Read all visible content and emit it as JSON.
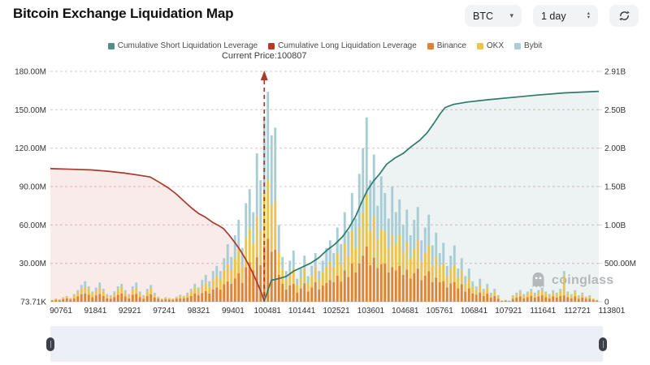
{
  "header": {
    "title": "Bitcoin Exchange Liquidation Map",
    "symbol": "BTC",
    "interval": "1 day"
  },
  "legend": {
    "items": [
      {
        "label": "Cumulative Short Liquidation Leverage",
        "color": "#4f9184"
      },
      {
        "label": "Cumulative Long Liquidation Leverage",
        "color": "#b5392c"
      },
      {
        "label": "Binance",
        "color": "#df8430"
      },
      {
        "label": "OKX",
        "color": "#ecc34b"
      },
      {
        "label": "Bybit",
        "color": "#a8cdd5"
      }
    ]
  },
  "annotation": {
    "current_price_label": "Current Price:100807",
    "line_color": "#a93a2e"
  },
  "watermark": {
    "text": "coinglass"
  },
  "chart_data": {
    "type": "combo (stacked bar + cumulative area lines)",
    "current_price": 100807,
    "current_price_x_frac": 0.39,
    "legend_position": "top",
    "x_axis": {
      "tick_labels": [
        "90761",
        "91841",
        "92921",
        "97241",
        "98321",
        "99401",
        "100481",
        "101441",
        "102521",
        "103601",
        "104681",
        "105761",
        "106841",
        "107921",
        "111641",
        "112721",
        "113801"
      ]
    },
    "left_axis": {
      "unit": "M",
      "range": [
        0,
        180
      ],
      "tick_labels": [
        "180.00M",
        "150.00M",
        "120.00M",
        "90.00M",
        "60.00M",
        "30.00M",
        "73.71K"
      ]
    },
    "right_axis": {
      "unit": "B",
      "range": [
        0,
        2.91
      ],
      "tick_labels": [
        "2.91B",
        "2.50B",
        "2.00B",
        "1.50B",
        "1.00B",
        "500.00M",
        "0"
      ]
    },
    "series": [
      {
        "id": "long",
        "name": "Cumulative Long Liquidation Leverage",
        "type": "line",
        "axis": "left",
        "color": "#a9392e",
        "fill": "rgba(197,92,81,0.12)",
        "points": [
          [
            0.0,
            104
          ],
          [
            0.04,
            103.5
          ],
          [
            0.075,
            103
          ],
          [
            0.105,
            102
          ],
          [
            0.135,
            100.5
          ],
          [
            0.16,
            99
          ],
          [
            0.182,
            97.5
          ],
          [
            0.2,
            93
          ],
          [
            0.215,
            89
          ],
          [
            0.23,
            84
          ],
          [
            0.245,
            78
          ],
          [
            0.258,
            73
          ],
          [
            0.27,
            69
          ],
          [
            0.283,
            66
          ],
          [
            0.296,
            62
          ],
          [
            0.307,
            59.5
          ],
          [
            0.316,
            57
          ],
          [
            0.326,
            52
          ],
          [
            0.335,
            47
          ],
          [
            0.345,
            41
          ],
          [
            0.355,
            34
          ],
          [
            0.365,
            26
          ],
          [
            0.375,
            17
          ],
          [
            0.384,
            8
          ],
          [
            0.39,
            0.3
          ]
        ]
      },
      {
        "id": "short",
        "name": "Cumulative Short Liquidation Leverage",
        "type": "line",
        "axis": "right",
        "color": "#2f7a6b",
        "fill": "rgba(80,140,125,0.10)",
        "points": [
          [
            0.391,
            0.03
          ],
          [
            0.397,
            0.16
          ],
          [
            0.403,
            0.28
          ],
          [
            0.416,
            0.3
          ],
          [
            0.43,
            0.33
          ],
          [
            0.444,
            0.4
          ],
          [
            0.459,
            0.45
          ],
          [
            0.474,
            0.5
          ],
          [
            0.489,
            0.57
          ],
          [
            0.504,
            0.67
          ],
          [
            0.519,
            0.75
          ],
          [
            0.533,
            0.85
          ],
          [
            0.545,
            0.97
          ],
          [
            0.557,
            1.12
          ],
          [
            0.569,
            1.32
          ],
          [
            0.578,
            1.45
          ],
          [
            0.59,
            1.58
          ],
          [
            0.601,
            1.67
          ],
          [
            0.613,
            1.79
          ],
          [
            0.628,
            1.87
          ],
          [
            0.643,
            1.93
          ],
          [
            0.658,
            2.02
          ],
          [
            0.673,
            2.1
          ],
          [
            0.687,
            2.2
          ],
          [
            0.699,
            2.32
          ],
          [
            0.711,
            2.45
          ],
          [
            0.72,
            2.53
          ],
          [
            0.735,
            2.57
          ],
          [
            0.76,
            2.6
          ],
          [
            0.797,
            2.63
          ],
          [
            0.841,
            2.66
          ],
          [
            0.886,
            2.69
          ],
          [
            0.938,
            2.72
          ],
          [
            1.0,
            2.74
          ]
        ]
      }
    ],
    "bars": {
      "names": [
        "Binance",
        "OKX",
        "Bybit"
      ],
      "colors": [
        "#df8430",
        "#ecc34b",
        "#a8cdd5"
      ],
      "unit": "M",
      "values": [
        [
          0.9,
          0.5,
          0.1
        ],
        [
          1.5,
          0.8,
          0.2
        ],
        [
          1.2,
          0.6,
          0.2
        ],
        [
          2.1,
          1.1,
          0.3
        ],
        [
          2.7,
          1.4,
          0.4
        ],
        [
          1.8,
          0.9,
          0.3
        ],
        [
          2.7,
          2.1,
          1.2
        ],
        [
          4.1,
          3.2,
          1.8
        ],
        [
          5.9,
          4.6,
          2.6
        ],
        [
          6.4,
          5.1,
          4.5
        ],
        [
          5.4,
          4.2,
          2.4
        ],
        [
          3.6,
          2.8,
          1.6
        ],
        [
          5.0,
          3.9,
          2.2
        ],
        [
          6.0,
          4.8,
          4.2
        ],
        [
          4.5,
          3.5,
          2.0
        ],
        [
          2.7,
          2.1,
          1.2
        ],
        [
          2.3,
          1.8,
          1.0
        ],
        [
          3.6,
          2.8,
          1.6
        ],
        [
          5.4,
          4.2,
          2.4
        ],
        [
          6.3,
          4.9,
          2.8
        ],
        [
          4.1,
          3.2,
          1.8
        ],
        [
          2.7,
          2.1,
          1.2
        ],
        [
          5.4,
          4.2,
          2.4
        ],
        [
          6.0,
          4.8,
          4.2
        ],
        [
          3.6,
          2.8,
          1.6
        ],
        [
          2.3,
          1.8,
          1.0
        ],
        [
          4.5,
          3.5,
          2.0
        ],
        [
          5.9,
          4.6,
          2.6
        ],
        [
          3.2,
          2.5,
          1.4
        ],
        [
          2.4,
          1.2,
          0.4
        ],
        [
          1.5,
          0.8,
          0.2
        ],
        [
          2.1,
          1.1,
          0.3
        ],
        [
          1.8,
          0.9,
          0.3
        ],
        [
          1.5,
          0.8,
          0.2
        ],
        [
          2.4,
          1.2,
          0.4
        ],
        [
          2.5,
          1.9,
          1.1
        ],
        [
          2.7,
          1.4,
          0.4
        ],
        [
          3.2,
          2.5,
          1.4
        ],
        [
          4.5,
          3.5,
          2.0
        ],
        [
          6.3,
          4.9,
          2.8
        ],
        [
          5.0,
          3.9,
          2.2
        ],
        [
          6.8,
          5.4,
          4.8
        ],
        [
          8.4,
          6.7,
          5.9
        ],
        [
          6.4,
          5.1,
          4.5
        ],
        [
          9.6,
          7.7,
          6.7
        ],
        [
          11.2,
          9.0,
          7.8
        ],
        [
          9.6,
          7.7,
          6.7
        ],
        [
          13.6,
          10.9,
          9.5
        ],
        [
          15.8,
          13.5,
          15.7
        ],
        [
          14.0,
          11.2,
          9.8
        ],
        [
          18.2,
          15.6,
          18.2
        ],
        [
          22.4,
          19.2,
          22.4
        ],
        [
          14.7,
          12.6,
          14.7
        ],
        [
          27.0,
          23.1,
          26.9
        ],
        [
          30.8,
          26.4,
          30.8
        ],
        [
          24.5,
          21.0,
          24.5
        ],
        [
          34.8,
          32.5,
          48.7
        ],
        [
          28.5,
          26.6,
          39.9
        ],
        [
          43.5,
          40.6,
          60.9
        ],
        [
          49.2,
          45.9,
          68.9
        ],
        [
          39.0,
          36.4,
          54.6
        ],
        [
          40.8,
          38.1,
          57.1
        ],
        [
          21.0,
          18.0,
          21.0
        ],
        [
          14.0,
          11.2,
          9.8
        ],
        [
          9.6,
          7.7,
          6.7
        ],
        [
          12.8,
          10.2,
          9.0
        ],
        [
          14.0,
          12.0,
          14.0
        ],
        [
          7.2,
          5.8,
          5.0
        ],
        [
          10.4,
          8.3,
          7.3
        ],
        [
          14.4,
          11.5,
          10.1
        ],
        [
          8.0,
          6.4,
          5.6
        ],
        [
          11.2,
          9.0,
          7.8
        ],
        [
          15.2,
          12.2,
          10.6
        ],
        [
          9.6,
          7.7,
          6.7
        ],
        [
          12.8,
          10.2,
          9.0
        ],
        [
          14.7,
          12.6,
          14.7
        ],
        [
          16.8,
          14.4,
          16.8
        ],
        [
          15.2,
          12.2,
          10.6
        ],
        [
          20.3,
          17.4,
          20.3
        ],
        [
          15.8,
          13.5,
          15.7
        ],
        [
          24.5,
          21.0,
          24.5
        ],
        [
          19.3,
          16.5,
          19.2
        ],
        [
          29.8,
          25.5,
          29.7
        ],
        [
          22.8,
          19.5,
          22.7
        ],
        [
          30.0,
          28.0,
          42.0
        ],
        [
          36.0,
          33.6,
          50.4
        ],
        [
          43.2,
          40.3,
          60.5
        ],
        [
          28.5,
          26.6,
          39.9
        ],
        [
          34.5,
          32.2,
          48.3
        ],
        [
          26.3,
          22.5,
          26.2
        ],
        [
          29.4,
          27.4,
          41.2
        ],
        [
          29.8,
          25.5,
          29.7
        ],
        [
          22.8,
          19.5,
          22.7
        ],
        [
          27.0,
          25.2,
          37.8
        ],
        [
          24.5,
          21.0,
          24.5
        ],
        [
          28.0,
          24.0,
          28.0
        ],
        [
          21.0,
          18.0,
          21.0
        ],
        [
          25.2,
          21.6,
          25.2
        ],
        [
          18.2,
          15.6,
          18.2
        ],
        [
          22.4,
          19.2,
          22.4
        ],
        [
          25.9,
          22.2,
          25.9
        ],
        [
          16.8,
          14.4,
          16.8
        ],
        [
          20.3,
          17.4,
          20.3
        ],
        [
          23.8,
          20.4,
          23.8
        ],
        [
          15.4,
          13.2,
          15.4
        ],
        [
          18.9,
          16.2,
          18.9
        ],
        [
          15.2,
          12.2,
          10.6
        ],
        [
          16.1,
          13.8,
          16.1
        ],
        [
          11.2,
          9.0,
          7.8
        ],
        [
          14.4,
          11.5,
          10.1
        ],
        [
          15.4,
          13.2,
          15.4
        ],
        [
          10.4,
          8.3,
          7.3
        ],
        [
          13.6,
          10.9,
          9.5
        ],
        [
          8.0,
          6.4,
          5.6
        ],
        [
          10.4,
          8.3,
          7.3
        ],
        [
          6.4,
          5.1,
          4.5
        ],
        [
          5.4,
          4.2,
          2.4
        ],
        [
          7.2,
          5.8,
          5.0
        ],
        [
          4.5,
          3.5,
          2.0
        ],
        [
          6.3,
          4.9,
          2.8
        ],
        [
          3.2,
          2.5,
          1.4
        ],
        [
          4.5,
          3.5,
          2.0
        ],
        [
          2.3,
          1.8,
          1.0
        ],
        [
          0.6,
          0.3,
          0.1
        ],
        [
          0.9,
          0.5,
          0.1
        ],
        [
          0.6,
          0.3,
          0.1
        ],
        [
          2.3,
          1.8,
          1.0
        ],
        [
          3.2,
          2.5,
          1.4
        ],
        [
          4.1,
          3.2,
          1.8
        ],
        [
          2.7,
          2.1,
          1.2
        ],
        [
          3.6,
          2.8,
          1.6
        ],
        [
          4.5,
          3.5,
          2.0
        ],
        [
          3.2,
          2.5,
          1.4
        ],
        [
          4.1,
          3.2,
          1.8
        ],
        [
          5.0,
          3.9,
          2.2
        ],
        [
          3.6,
          2.8,
          1.6
        ],
        [
          2.7,
          2.1,
          1.2
        ],
        [
          4.1,
          3.2,
          1.8
        ],
        [
          3.2,
          2.5,
          1.4
        ],
        [
          4.5,
          3.5,
          2.0
        ],
        [
          5.0,
          16.0,
          3.0
        ],
        [
          3.6,
          2.8,
          1.6
        ],
        [
          2.7,
          2.1,
          1.2
        ],
        [
          4.1,
          3.2,
          1.8
        ],
        [
          2.3,
          1.8,
          1.0
        ],
        [
          3.2,
          2.5,
          1.4
        ],
        [
          2.4,
          1.2,
          0.4
        ],
        [
          2.3,
          1.8,
          1.0
        ],
        [
          1.5,
          0.8,
          0.2
        ],
        [
          0.9,
          0.5,
          0.1
        ]
      ]
    }
  }
}
